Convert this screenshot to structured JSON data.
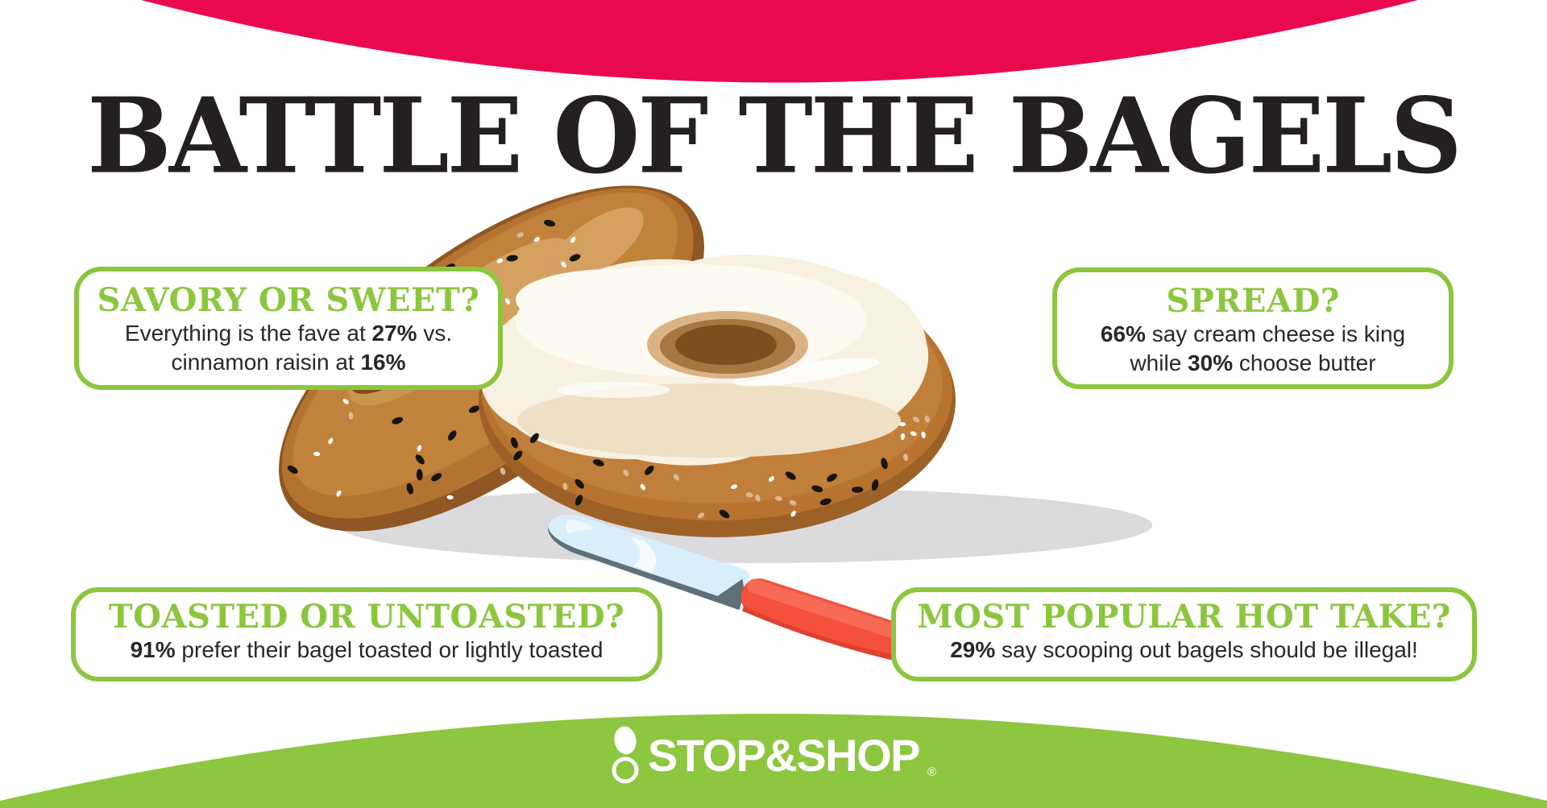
{
  "title": "BATTLE OF THE BAGELS",
  "colors": {
    "top_banner_pink": "#E9094E",
    "card_green": "#8CC63E",
    "footer_green": "#8DC63F",
    "heading_green": "#8CC63E",
    "text_dark": "#2B2728",
    "title_black": "#242021",
    "knife_handle_red": "#F4503C",
    "bagel_brown": "#BF7D35"
  },
  "cards": [
    {
      "id": "savory-or-sweet",
      "heading": "SAVORY OR SWEET?",
      "lines": [
        {
          "segments": [
            {
              "text": "Everything is the fave at ",
              "bold": false
            },
            {
              "text": "27%",
              "bold": true
            },
            {
              "text": " vs.",
              "bold": false
            }
          ]
        },
        {
          "segments": [
            {
              "text": "cinnamon raisin at ",
              "bold": false
            },
            {
              "text": "16%",
              "bold": true
            }
          ]
        }
      ]
    },
    {
      "id": "spread",
      "heading": "SPREAD?",
      "lines": [
        {
          "segments": [
            {
              "text": "66%",
              "bold": true
            },
            {
              "text": " say cream cheese is king",
              "bold": false
            }
          ]
        },
        {
          "segments": [
            {
              "text": "while ",
              "bold": false
            },
            {
              "text": "30%",
              "bold": true
            },
            {
              "text": " choose butter",
              "bold": false
            }
          ]
        }
      ]
    },
    {
      "id": "toasted-or-untoasted",
      "heading": "TOASTED OR UNTOASTED?",
      "lines": [
        {
          "segments": [
            {
              "text": "91%",
              "bold": true
            },
            {
              "text": " prefer their bagel toasted or lightly toasted",
              "bold": false
            }
          ]
        }
      ]
    },
    {
      "id": "most-popular-hot-take",
      "heading": "MOST POPULAR HOT TAKE?",
      "lines": [
        {
          "segments": [
            {
              "text": "29%",
              "bold": true
            },
            {
              "text": " say scooping out bagels should be illegal!",
              "bold": false
            }
          ]
        }
      ]
    }
  ],
  "footer": {
    "brand": "STOP&SHOP",
    "registered": "®",
    "logo_icon": "stop-and-shop-dot-ring-icon"
  },
  "chart_data": {
    "type": "table",
    "title": "Battle of the Bagels",
    "groups": [
      {
        "question": "Savory or sweet?",
        "stats": [
          {
            "label": "Everything bagel",
            "value_pct": 27
          },
          {
            "label": "Cinnamon raisin",
            "value_pct": 16
          }
        ]
      },
      {
        "question": "Spread?",
        "stats": [
          {
            "label": "Cream cheese",
            "value_pct": 66
          },
          {
            "label": "Butter",
            "value_pct": 30
          }
        ]
      },
      {
        "question": "Toasted or untoasted?",
        "stats": [
          {
            "label": "Prefer bagel toasted or lightly toasted",
            "value_pct": 91
          }
        ]
      },
      {
        "question": "Most popular hot take?",
        "stats": [
          {
            "label": "Scooping out bagels should be illegal",
            "value_pct": 29
          }
        ]
      }
    ]
  }
}
